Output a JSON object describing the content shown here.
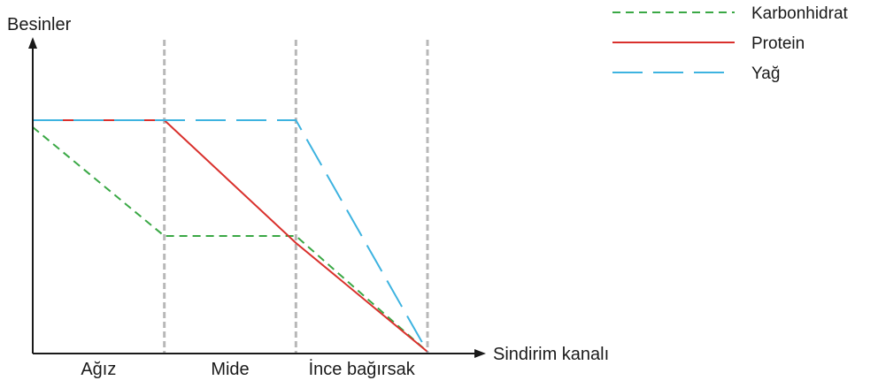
{
  "chart_data": {
    "type": "line",
    "title": "",
    "ylabel": "Besinler",
    "xlabel": "Sindirim kanalı",
    "categories": [
      "Ağız",
      "Mide",
      "İnce bağırsak"
    ],
    "x": [
      0,
      1,
      2,
      3
    ],
    "ylim": [
      0,
      1
    ],
    "grid": false,
    "legend_placement": "top-right",
    "series": [
      {
        "name": "Karbonhidrat",
        "color": "#3aa845",
        "dash": "dashed",
        "points": [
          [
            0,
            0.97
          ],
          [
            1,
            0.5
          ],
          [
            2,
            0.5
          ],
          [
            3,
            0
          ]
        ]
      },
      {
        "name": "Protein",
        "color": "#d9302c",
        "dash": "solid",
        "points": [
          [
            0,
            1
          ],
          [
            1,
            1
          ],
          [
            2,
            0.47
          ],
          [
            3,
            0
          ]
        ]
      },
      {
        "name": "Yağ",
        "color": "#3db3e0",
        "dash": "long-dash",
        "points": [
          [
            0,
            1
          ],
          [
            1,
            1
          ],
          [
            2,
            1
          ],
          [
            3,
            0
          ]
        ]
      }
    ],
    "separators": [
      1,
      2,
      3
    ],
    "separator_color": "#b8b8b8"
  }
}
